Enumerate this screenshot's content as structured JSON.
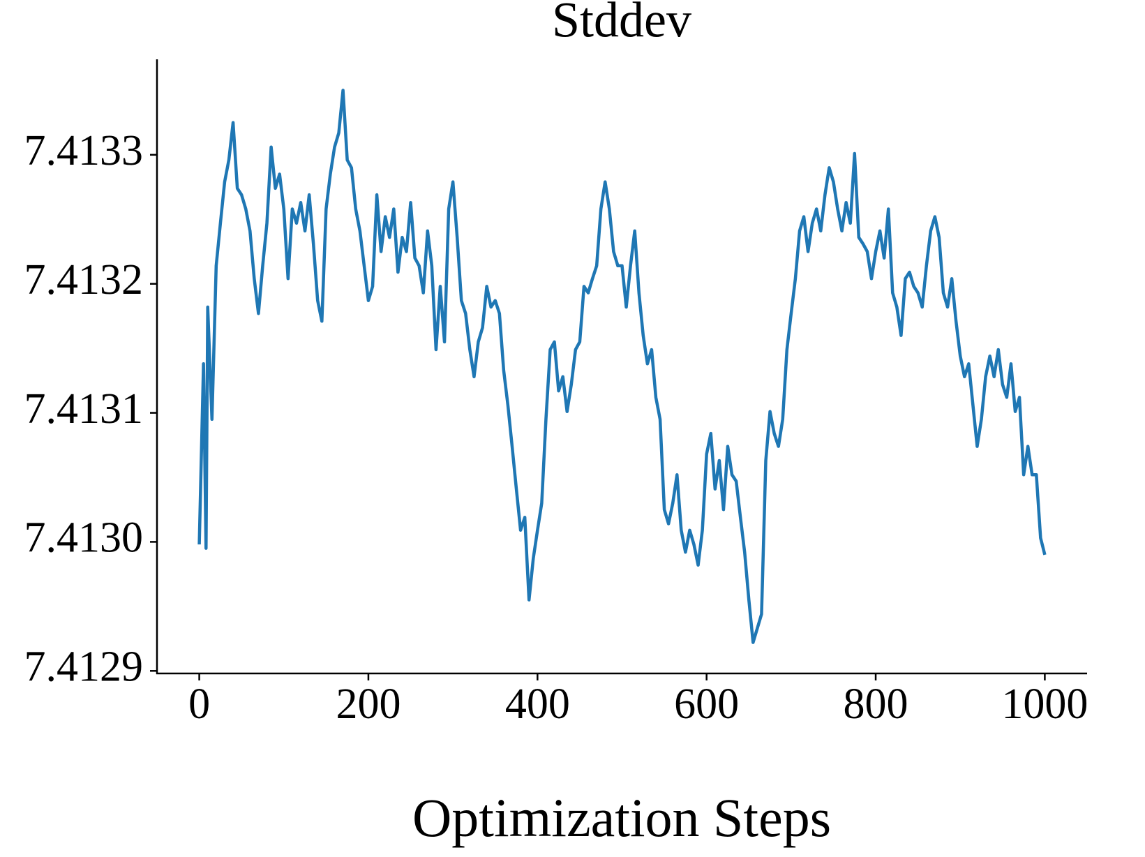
{
  "chart_data": {
    "type": "line",
    "title": "Stddev",
    "x_label": "Optimization Steps",
    "color": "#1f77b4",
    "x": [
      0,
      5,
      8,
      10,
      15,
      20,
      25,
      30,
      35,
      40,
      45,
      50,
      55,
      60,
      65,
      70,
      75,
      80,
      85,
      90,
      95,
      100,
      105,
      110,
      115,
      120,
      125,
      130,
      135,
      140,
      145,
      150,
      155,
      160,
      165,
      170,
      175,
      180,
      185,
      190,
      200,
      205,
      210,
      215,
      220,
      225,
      230,
      235,
      240,
      245,
      250,
      255,
      260,
      265,
      270,
      275,
      280,
      285,
      290,
      295,
      300,
      305,
      310,
      315,
      320,
      325,
      330,
      335,
      340,
      345,
      350,
      355,
      360,
      365,
      370,
      375,
      380,
      385,
      390,
      395,
      400,
      405,
      410,
      415,
      420,
      425,
      430,
      435,
      440,
      445,
      450,
      455,
      460,
      465,
      470,
      475,
      480,
      485,
      490,
      495,
      500,
      505,
      510,
      515,
      520,
      525,
      530,
      535,
      540,
      545,
      550,
      555,
      560,
      565,
      570,
      575,
      580,
      585,
      590,
      595,
      600,
      605,
      610,
      615,
      620,
      625,
      630,
      635,
      640,
      645,
      650,
      655,
      660,
      665,
      670,
      675,
      680,
      685,
      690,
      695,
      700,
      705,
      710,
      715,
      720,
      725,
      730,
      735,
      740,
      745,
      750,
      755,
      760,
      765,
      770,
      775,
      780,
      785,
      790,
      795,
      800,
      805,
      810,
      815,
      820,
      825,
      830,
      835,
      840,
      845,
      850,
      855,
      860,
      865,
      870,
      875,
      880,
      885,
      890,
      895,
      900,
      905,
      910,
      915,
      920,
      925,
      930,
      935,
      940,
      945,
      950,
      955,
      960,
      965,
      970,
      975,
      980,
      985,
      990,
      995,
      1000
    ],
    "values": [
      7.412998,
      7.413138,
      7.412995,
      7.413182,
      7.413095,
      7.413214,
      7.413247,
      7.413279,
      7.413296,
      7.413325,
      7.413274,
      7.413269,
      7.413258,
      7.413241,
      7.413204,
      7.413177,
      7.413214,
      7.413247,
      7.413306,
      7.413274,
      7.413285,
      7.413258,
      7.413204,
      7.413258,
      7.413247,
      7.413263,
      7.413241,
      7.413269,
      7.413231,
      7.413187,
      7.413171,
      7.413258,
      7.413285,
      7.413306,
      7.413317,
      7.41335,
      7.413296,
      7.41329,
      7.413258,
      7.413241,
      7.413187,
      7.413198,
      7.413269,
      7.413225,
      7.413252,
      7.413236,
      7.413258,
      7.413209,
      7.413236,
      7.413225,
      7.413263,
      7.41322,
      7.413214,
      7.413193,
      7.413241,
      7.413214,
      7.413149,
      7.413198,
      7.413155,
      7.413258,
      7.413279,
      7.413236,
      7.413187,
      7.413177,
      7.413149,
      7.413128,
      7.413155,
      7.413166,
      7.413198,
      7.413182,
      7.413187,
      7.413177,
      7.413133,
      7.413106,
      7.413074,
      7.413041,
      7.413009,
      7.413019,
      7.412955,
      7.412987,
      7.413009,
      7.41303,
      7.413095,
      7.413149,
      7.413155,
      7.413117,
      7.413128,
      7.413101,
      7.413122,
      7.413149,
      7.413155,
      7.413198,
      7.413193,
      7.413204,
      7.413214,
      7.413258,
      7.413279,
      7.413258,
      7.413225,
      7.413214,
      7.413214,
      7.413182,
      7.413214,
      7.413241,
      7.413193,
      7.41316,
      7.413138,
      7.413149,
      7.413112,
      7.413095,
      7.413025,
      7.413014,
      7.41303,
      7.413052,
      7.413009,
      7.412992,
      7.413009,
      7.412998,
      7.412982,
      7.413009,
      7.413068,
      7.413084,
      7.413041,
      7.413063,
      7.413025,
      7.413074,
      7.413052,
      7.413047,
      7.413019,
      7.412992,
      7.412955,
      7.412922,
      7.412933,
      7.412944,
      7.413063,
      7.413101,
      7.413084,
      7.413074,
      7.413095,
      7.413149,
      7.413177,
      7.413204,
      7.413241,
      7.413252,
      7.413225,
      7.413247,
      7.413258,
      7.413241,
      7.413269,
      7.41329,
      7.413279,
      7.413258,
      7.413241,
      7.413263,
      7.413247,
      7.413301,
      7.413236,
      7.413231,
      7.413225,
      7.413204,
      7.413225,
      7.413241,
      7.41322,
      7.413258,
      7.413193,
      7.413182,
      7.41316,
      7.413204,
      7.413209,
      7.413198,
      7.413193,
      7.413182,
      7.413214,
      7.413241,
      7.413252,
      7.413236,
      7.413193,
      7.413182,
      7.413204,
      7.413171,
      7.413144,
      7.413128,
      7.413138,
      7.413106,
      7.413074,
      7.413095,
      7.413128,
      7.413144,
      7.413128,
      7.413149,
      7.413122,
      7.413112,
      7.413138,
      7.413101,
      7.413112,
      7.413052,
      7.413074,
      7.413052,
      7.413052,
      7.413003,
      7.41299
    ],
    "xlim": [
      -50,
      1050
    ],
    "xticks": [
      0,
      200,
      400,
      600,
      800,
      1000
    ],
    "ylim": [
      7.412898,
      7.413374
    ],
    "yticks": [
      7.4129,
      {
        "value": 7.413,
        "label": "7.4130"
      },
      7.4131,
      7.4132,
      7.4133
    ]
  }
}
